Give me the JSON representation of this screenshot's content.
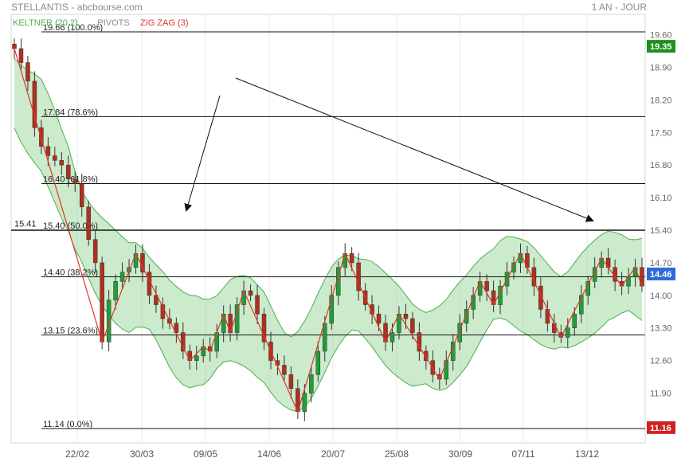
{
  "header": {
    "title": "STELLANTIS - abcbourse.com",
    "period": "1 AN - JOUR"
  },
  "chart_data": {
    "type": "candlestick",
    "title": "STELLANTIS - abcbourse.com",
    "legend": [
      {
        "name": "KELTNER (20,2)",
        "color": "#4caf50"
      },
      {
        "name": "PIVOTS",
        "color": "#8a8a8a"
      },
      {
        "name": "ZIG ZAG (3)",
        "color": "#e8322a"
      }
    ],
    "ylim": [
      11.14,
      19.66
    ],
    "y_ticks": [
      "19.60",
      "18.90",
      "18.20",
      "17.50",
      "16.80",
      "16.10",
      "15.40",
      "14.70",
      "14.00",
      "13.30",
      "12.60",
      "11.90"
    ],
    "x_tick_labels": [
      "22/02",
      "30/03",
      "09/05",
      "14/06",
      "20/07",
      "25/08",
      "30/09",
      "07/11",
      "13/12"
    ],
    "price_badges": [
      {
        "label": "19.35",
        "value": 19.35,
        "color": "#1f8f1f"
      },
      {
        "label": "14.46",
        "value": 14.46,
        "color": "#2f6bd6"
      },
      {
        "label": "11.16",
        "value": 11.16,
        "color": "#d02020"
      }
    ],
    "left_label": {
      "label": "15.41",
      "value": 15.41
    },
    "fibonacci_levels": [
      {
        "label": "19.66 (100.0%)",
        "value": 19.66
      },
      {
        "label": "17.84 (78.6%)",
        "value": 17.84
      },
      {
        "label": "16.40 (61.8%)",
        "value": 16.4
      },
      {
        "label": "15.40 (50.0%)",
        "value": 15.4
      },
      {
        "label": "14.40 (38.2%)",
        "value": 14.4
      },
      {
        "label": "13.15 (23.6%)",
        "value": 13.15
      },
      {
        "label": "11.14 (0.0%)",
        "value": 11.14
      }
    ],
    "close_series": [
      19.3,
      19.0,
      18.6,
      17.6,
      17.2,
      17.0,
      16.9,
      16.8,
      16.5,
      16.4,
      15.9,
      15.2,
      14.7,
      13.0,
      13.9,
      14.3,
      14.5,
      14.6,
      14.9,
      14.5,
      14.0,
      13.8,
      13.5,
      13.4,
      13.2,
      12.8,
      12.6,
      12.7,
      12.9,
      12.8,
      13.2,
      13.6,
      13.2,
      13.8,
      14.1,
      14.0,
      13.6,
      13.0,
      12.6,
      12.5,
      12.3,
      12.0,
      11.5,
      11.9,
      12.3,
      12.8,
      13.4,
      14.0,
      14.6,
      14.9,
      14.7,
      14.1,
      13.8,
      13.6,
      13.4,
      13.0,
      13.2,
      13.6,
      13.5,
      13.2,
      12.8,
      12.6,
      12.3,
      12.2,
      12.6,
      13.0,
      13.4,
      13.7,
      14.0,
      14.3,
      14.1,
      13.8,
      14.2,
      14.5,
      14.7,
      14.9,
      14.6,
      14.2,
      13.7,
      13.4,
      13.2,
      13.1,
      13.3,
      13.6,
      14.0,
      14.3,
      14.6,
      14.8,
      14.6,
      14.3,
      14.2,
      14.4,
      14.6,
      14.2
    ]
  }
}
